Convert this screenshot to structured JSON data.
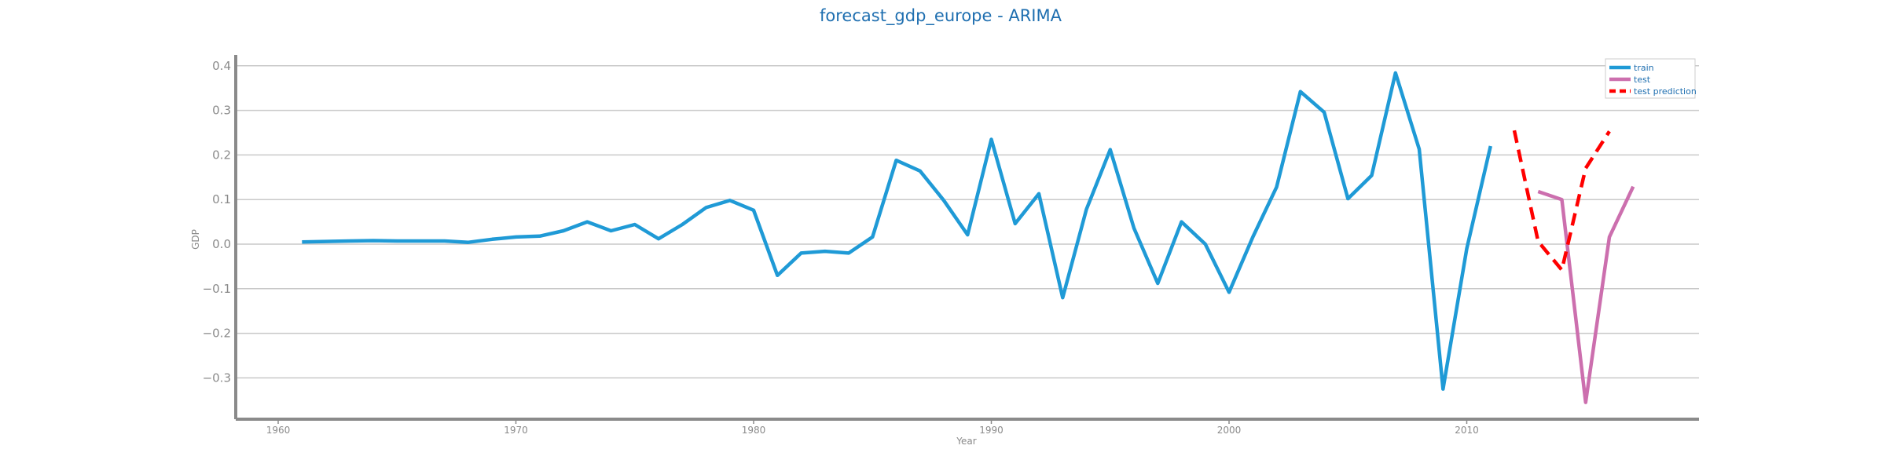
{
  "chart_data": {
    "type": "line",
    "title": "forecast_gdp_europe - ARIMA",
    "xlabel": "Year",
    "ylabel": "GDP",
    "xlim": [
      1958,
      2020
    ],
    "ylim": [
      -0.4,
      0.42
    ],
    "xticks": [
      1960,
      1970,
      1980,
      1990,
      2000,
      2010
    ],
    "yticks": [
      0.4,
      0.3,
      0.2,
      0.1,
      0.0,
      -0.1,
      -0.2,
      -0.3
    ],
    "ytick_labels": [
      "0.4",
      "0.3",
      "0.2",
      "0.1",
      "0.0",
      "−0.1",
      "−0.2",
      "−0.3"
    ],
    "grid": "horizontal",
    "legend_position": "top-right",
    "series": [
      {
        "name": "train",
        "color": "#1f9ad6",
        "style": "solid",
        "x": [
          1961,
          1962,
          1963,
          1964,
          1965,
          1966,
          1967,
          1968,
          1969,
          1970,
          1971,
          1972,
          1973,
          1974,
          1975,
          1976,
          1977,
          1978,
          1979,
          1980,
          1981,
          1982,
          1983,
          1984,
          1985,
          1986,
          1987,
          1988,
          1989,
          1990,
          1991,
          1992,
          1993,
          1994,
          1995,
          1996,
          1997,
          1998,
          1999,
          2000,
          2001,
          2002,
          2003,
          2004,
          2005,
          2006,
          2007,
          2008,
          2009,
          2010,
          2011
        ],
        "values": [
          0.005,
          0.006,
          0.007,
          0.008,
          0.007,
          0.007,
          0.007,
          0.004,
          0.011,
          0.016,
          0.018,
          0.03,
          0.05,
          0.03,
          0.044,
          0.012,
          0.044,
          0.082,
          0.098,
          0.076,
          -0.07,
          -0.02,
          -0.016,
          -0.02,
          0.016,
          0.188,
          0.164,
          0.098,
          0.021,
          0.235,
          0.046,
          0.113,
          -0.12,
          0.078,
          0.212,
          0.036,
          -0.088,
          0.05,
          0.0,
          -0.108,
          0.016,
          0.128,
          0.342,
          0.296,
          0.102,
          0.154,
          0.384,
          0.213,
          -0.325,
          -0.01,
          0.22
        ]
      },
      {
        "name": "test",
        "color": "#cc6fae",
        "style": "solid",
        "x": [
          2013,
          2014,
          2015,
          2016,
          2017
        ],
        "values": [
          0.118,
          0.1,
          -0.355,
          0.016,
          0.129
        ]
      },
      {
        "name": "test prediction",
        "color": "#ff0000",
        "style": "dashed",
        "x": [
          2012,
          2013,
          2014,
          2015,
          2016
        ],
        "values": [
          0.255,
          0.006,
          -0.058,
          0.17,
          0.253
        ]
      }
    ]
  }
}
